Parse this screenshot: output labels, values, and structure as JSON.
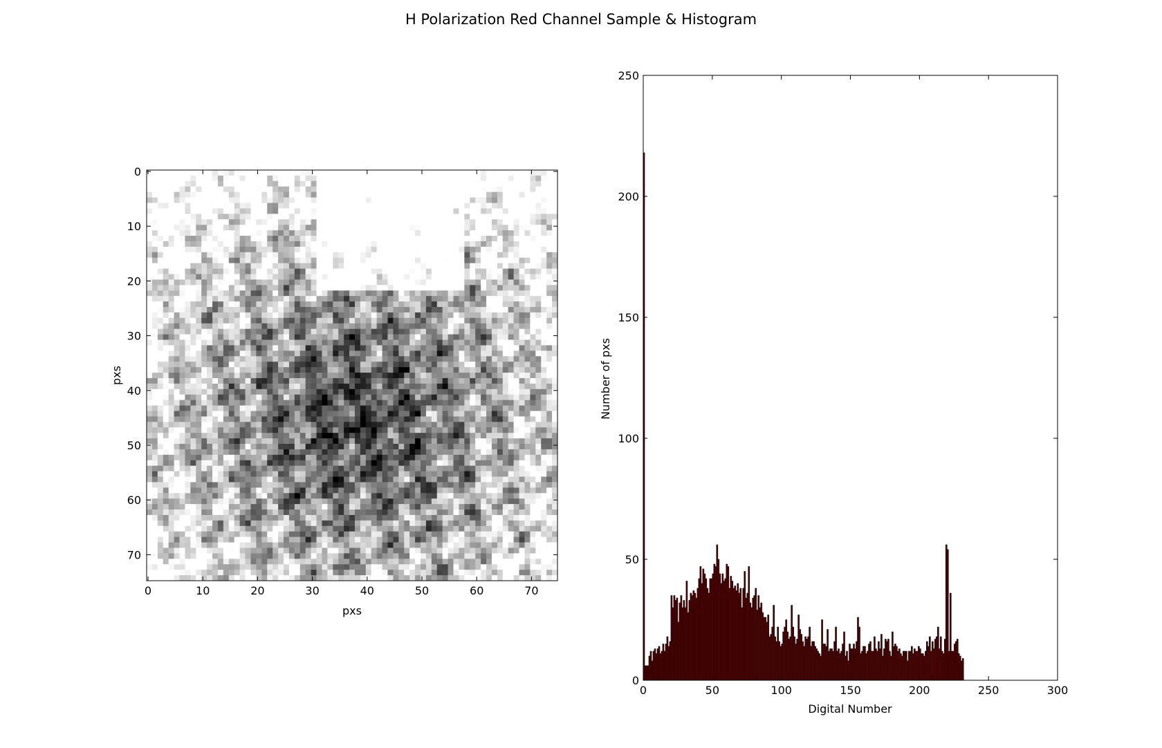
{
  "figure": {
    "title": "H Polarization Red Channel Sample & Histogram"
  },
  "chart_data": [
    {
      "type": "heatmap",
      "colormap": "gray",
      "xlabel": "pxs",
      "ylabel": "pxs",
      "width_pxs": 75,
      "height_pxs": 75,
      "xlim": [
        0,
        75
      ],
      "ylim": [
        75,
        0
      ],
      "xticks": [
        0,
        10,
        20,
        30,
        40,
        50,
        60,
        70
      ],
      "yticks": [
        0,
        10,
        20,
        30,
        40,
        50,
        60,
        70
      ],
      "grid": false
    },
    {
      "type": "bar",
      "title": "",
      "xlabel": "Digital Number",
      "ylabel": "Number of pxs",
      "xlim": [
        0,
        300
      ],
      "ylim": [
        0,
        250
      ],
      "xticks": [
        0,
        50,
        100,
        150,
        200,
        250,
        300
      ],
      "yticks": [
        0,
        50,
        100,
        150,
        200,
        250
      ],
      "bar_color": "#5a0000",
      "bar_edge_color": "#000000",
      "grid": false,
      "bins_start": 0,
      "bin_width": 1,
      "values": [
        218,
        6,
        6,
        6,
        10,
        12,
        8,
        12,
        13,
        11,
        13,
        14,
        11,
        12,
        15,
        12,
        15,
        18,
        14,
        16,
        35,
        30,
        35,
        33,
        34,
        24,
        32,
        35,
        30,
        33,
        30,
        41,
        28,
        33,
        36,
        35,
        37,
        36,
        34,
        38,
        42,
        47,
        40,
        46,
        44,
        42,
        38,
        36,
        42,
        42,
        44,
        48,
        47,
        56,
        50,
        44,
        40,
        44,
        41,
        42,
        48,
        47,
        38,
        43,
        41,
        38,
        39,
        37,
        40,
        36,
        38,
        30,
        38,
        45,
        34,
        36,
        47,
        32,
        30,
        34,
        35,
        38,
        29,
        35,
        30,
        32,
        28,
        26,
        26,
        24,
        27,
        18,
        19,
        22,
        31,
        18,
        16,
        22,
        16,
        14,
        15,
        20,
        22,
        25,
        20,
        17,
        18,
        31,
        22,
        18,
        15,
        17,
        27,
        21,
        19,
        16,
        14,
        18,
        17,
        18,
        22,
        14,
        16,
        16,
        14,
        13,
        12,
        11,
        10,
        25,
        15,
        15,
        14,
        21,
        12,
        13,
        13,
        12,
        16,
        22,
        12,
        13,
        11,
        12,
        15,
        20,
        10,
        12,
        8,
        15,
        13,
        13,
        15,
        13,
        16,
        26,
        22,
        11,
        12,
        14,
        14,
        11,
        12,
        15,
        16,
        12,
        12,
        18,
        13,
        12,
        16,
        13,
        19,
        10,
        13,
        17,
        16,
        17,
        12,
        10,
        20,
        14,
        15,
        14,
        12,
        13,
        11,
        10,
        12,
        12,
        12,
        8,
        12,
        12,
        14,
        11,
        13,
        12,
        12,
        14,
        13,
        11,
        11,
        10,
        12,
        16,
        14,
        18,
        12,
        16,
        13,
        17,
        18,
        22,
        13,
        18,
        12,
        11,
        17,
        56,
        54,
        12,
        36,
        12,
        12,
        15,
        16,
        17,
        11,
        10,
        8,
        9
      ]
    }
  ]
}
